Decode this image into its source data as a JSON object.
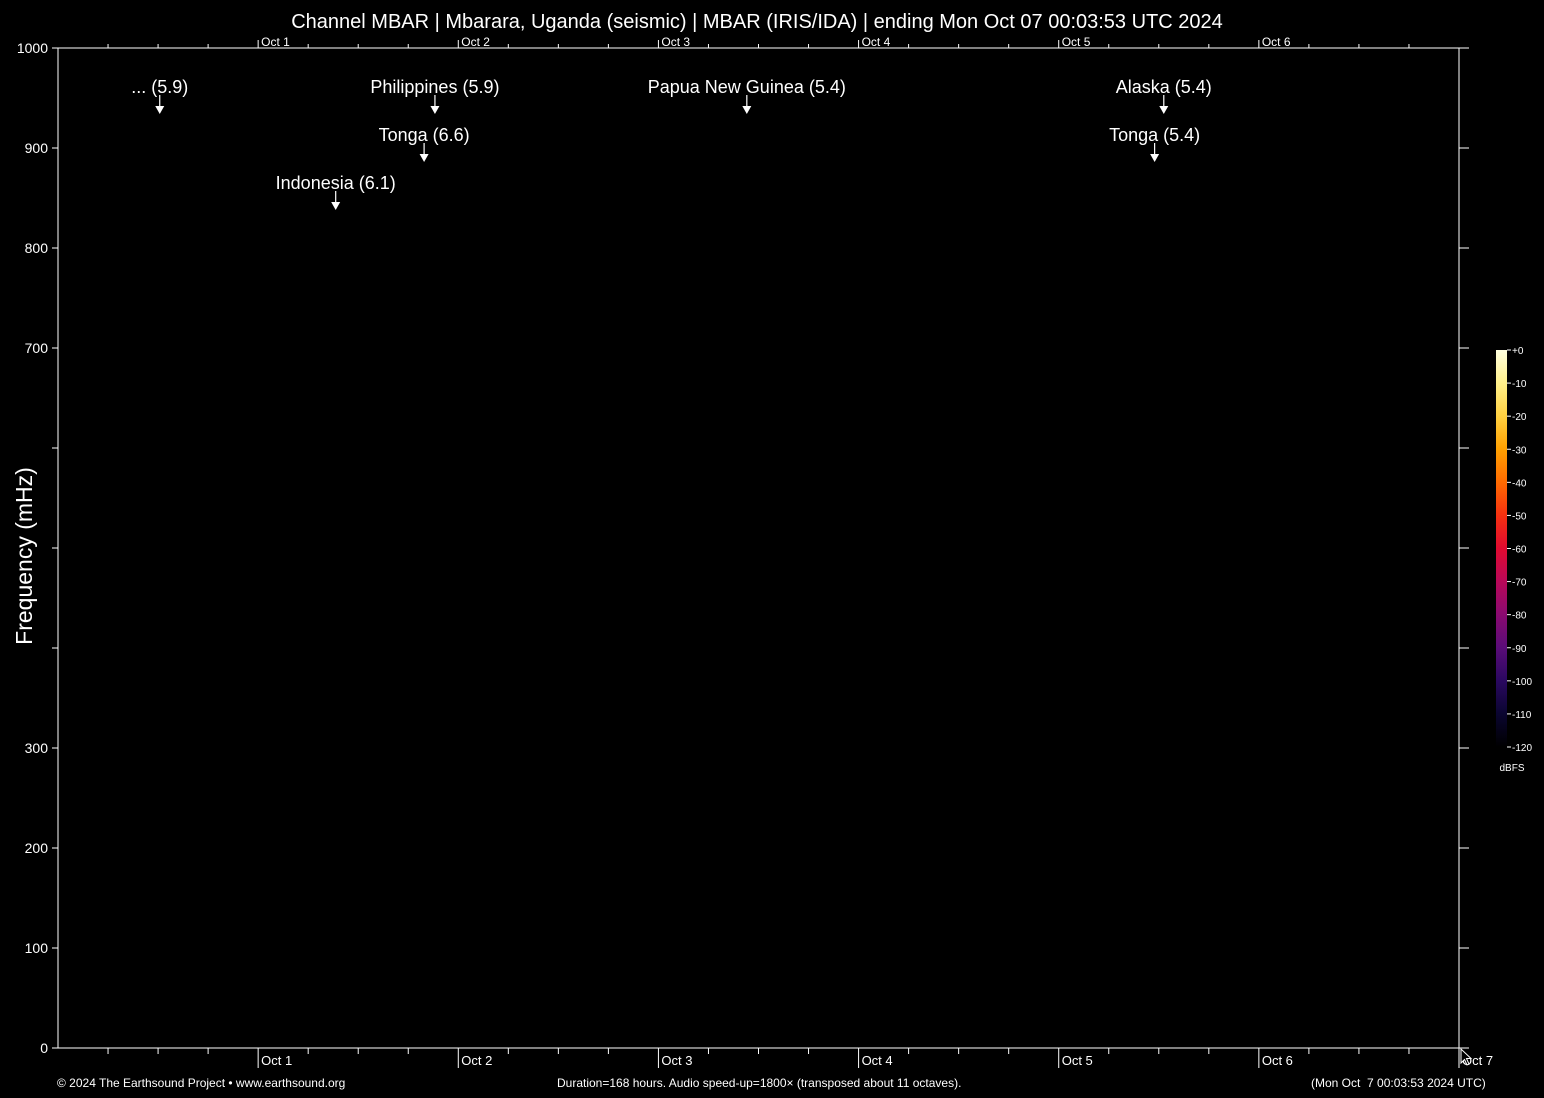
{
  "footer": {
    "copyright": "© 2024 The Earthsound Project • www.earthsound.org",
    "duration": "Duration=168 hours. Audio speed-up=1800× (transposed about 11 octaves).",
    "timestamp": "(Mon Oct  7 00:03:53 2024 UTC)"
  },
  "chart_data": {
    "type": "heatmap",
    "title": "Channel MBAR | Mbarara, Uganda (seismic) | MBAR (IRIS/IDA) | ending Mon Oct 07 00:03:53 UTC 2024",
    "xlabel": "",
    "ylabel": "Frequency (mHz)",
    "x_range_hours": [
      0,
      168
    ],
    "ylim": [
      0,
      1000
    ],
    "y_ticks": [
      0,
      100,
      200,
      300,
      400,
      500,
      600,
      700,
      800,
      900,
      1000
    ],
    "y_tick_labels": [
      "0",
      "100",
      "200",
      "300",
      "",
      "",
      "",
      "700",
      "800",
      "900",
      "1000"
    ],
    "x_tick_labels": [
      {
        "hour": 24,
        "label": "Oct  1"
      },
      {
        "hour": 48,
        "label": "Oct  2"
      },
      {
        "hour": 72,
        "label": "Oct  3"
      },
      {
        "hour": 96,
        "label": "Oct  4"
      },
      {
        "hour": 120,
        "label": "Oct  5"
      },
      {
        "hour": 144,
        "label": "Oct  6"
      },
      {
        "hour": 168,
        "label": "Oct  7"
      }
    ],
    "grid": false,
    "events": [
      {
        "label": "... (5.9)",
        "hour": 12.2,
        "row": 1
      },
      {
        "label": "Philippines (5.9)",
        "hour": 45.2,
        "row": 1
      },
      {
        "label": "Papua New Guinea (5.4)",
        "hour": 82.6,
        "row": 1
      },
      {
        "label": "Alaska (5.4)",
        "hour": 132.6,
        "row": 1
      },
      {
        "label": "Tonga (6.6)",
        "hour": 43.9,
        "row": 2
      },
      {
        "label": "Tonga (5.4)",
        "hour": 131.5,
        "row": 2
      },
      {
        "label": "Indonesia (6.1)",
        "hour": 33.3,
        "row": 3
      }
    ],
    "colorbar": {
      "unit": "dBFS",
      "range": [
        -120,
        0
      ],
      "ticks": [
        "+0",
        "-10",
        "-20",
        "-30",
        "-40",
        "-50",
        "-60",
        "-70",
        "-80",
        "-90",
        "-100",
        "-110",
        "-120"
      ],
      "colors": [
        "#000000",
        "#0a0530",
        "#2a0860",
        "#5a0c78",
        "#8a0a70",
        "#b80858",
        "#e00a30",
        "#f53010",
        "#ff6a00",
        "#ffa000",
        "#ffd040",
        "#fff08a",
        "#ffffe0"
      ]
    }
  }
}
